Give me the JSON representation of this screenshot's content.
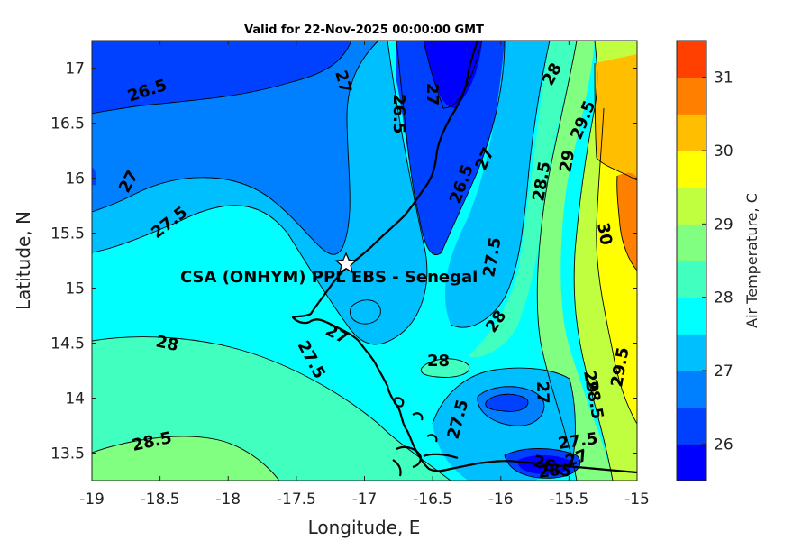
{
  "title": "Valid for 22-Nov-2025 00:00:00 GMT",
  "site_label": "CSA (ONHYM) PPL EBS  - Senegal",
  "xlabel": "Longitude, E",
  "ylabel": "Latitude, N",
  "colorbar_label": "Air Temperature, C",
  "x_ticks": [
    "-19",
    "-18.5",
    "-18",
    "-17.5",
    "-17",
    "-16.5",
    "-16",
    "-15.5",
    "-15"
  ],
  "y_ticks": [
    "13.5",
    "14",
    "14.5",
    "15",
    "15.5",
    "16",
    "16.5",
    "17"
  ],
  "colorbar_ticks": [
    "26",
    "27",
    "28",
    "29",
    "30",
    "31"
  ],
  "contour_labels": [
    {
      "text": "26.5"
    },
    {
      "text": "27"
    },
    {
      "text": "26.5"
    },
    {
      "text": "27"
    },
    {
      "text": "27"
    },
    {
      "text": "27.5"
    },
    {
      "text": "26.5"
    },
    {
      "text": "27"
    },
    {
      "text": "28"
    },
    {
      "text": "29.5"
    },
    {
      "text": "28.5"
    },
    {
      "text": "29"
    },
    {
      "text": "30"
    },
    {
      "text": "27.5"
    },
    {
      "text": "28"
    },
    {
      "text": "27"
    },
    {
      "text": "27.5"
    },
    {
      "text": "28"
    },
    {
      "text": "28"
    },
    {
      "text": "27.5"
    },
    {
      "text": "27"
    },
    {
      "text": "28.5"
    },
    {
      "text": "29.5"
    },
    {
      "text": "29"
    },
    {
      "text": "28.5"
    },
    {
      "text": "27.5"
    },
    {
      "text": "27"
    },
    {
      "text": "26.5"
    },
    {
      "text": "28"
    },
    {
      "text": "28"
    }
  ],
  "map_data": {
    "xlim": [
      -19,
      -15
    ],
    "ylim": [
      13.25,
      17.25
    ],
    "clim": [
      25.5,
      31.5
    ],
    "level_step": 0.5,
    "colors": [
      "#0000ff",
      "#0040ff",
      "#0080ff",
      "#00bfff",
      "#00ffff",
      "#40ffbf",
      "#80ff80",
      "#bfff40",
      "#ffff00",
      "#ffbf00",
      "#ff8000",
      "#ff4000"
    ],
    "site_marker": {
      "lon": -17.12,
      "lat": 15.22,
      "symbol": "star"
    }
  }
}
